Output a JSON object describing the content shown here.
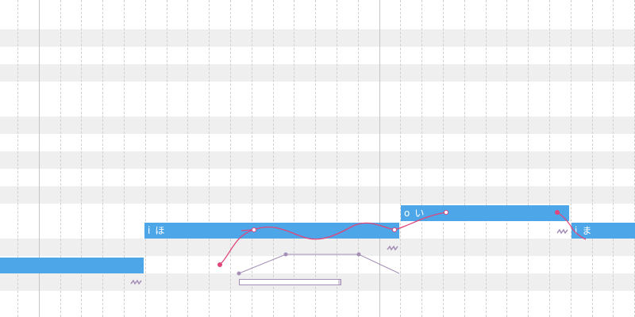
{
  "colors": {
    "note_fill": "#4da6e8",
    "note_text": "#ffffff",
    "pitch_curve": "#e0457b",
    "envelope": "#a58fb6",
    "row_shade": "#efefef",
    "grid_line": "#cfcfcf"
  },
  "notes": [
    {
      "id": "note-1",
      "prefix": "",
      "lyric": ""
    },
    {
      "id": "note-2",
      "prefix": "i",
      "lyric": "ほ"
    },
    {
      "id": "note-3",
      "prefix": "o",
      "lyric": "い"
    },
    {
      "id": "note-4",
      "prefix": "i",
      "lyric": "ま"
    }
  ],
  "icons": {
    "vibrato": "vibrato-icon"
  }
}
